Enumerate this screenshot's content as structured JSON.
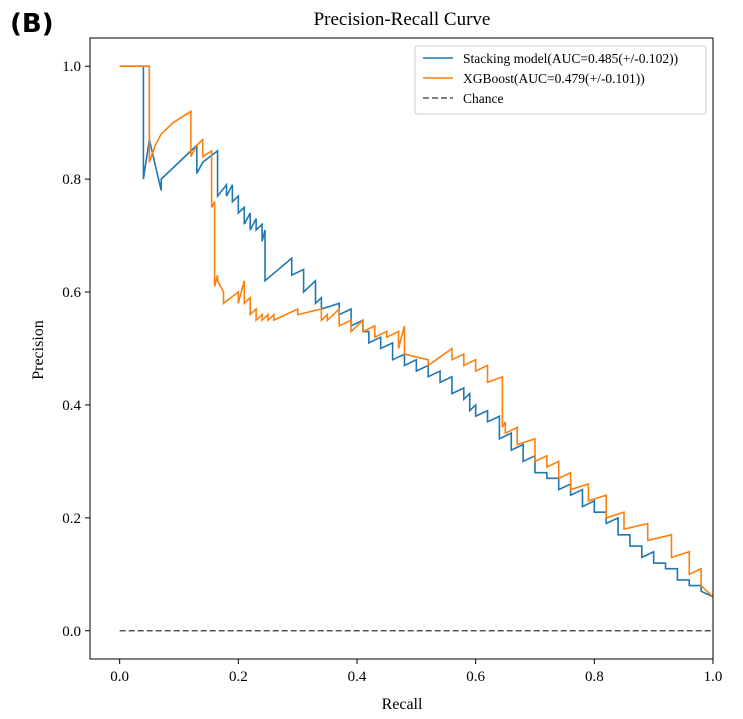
{
  "panel_label": "(B)",
  "chart_data": {
    "type": "line",
    "title": "Precision-Recall Curve",
    "xlabel": "Recall",
    "ylabel": "Precision",
    "xlim": [
      -0.05,
      1.0
    ],
    "ylim": [
      -0.05,
      1.05
    ],
    "xticks": [
      0.0,
      0.2,
      0.4,
      0.6,
      0.8,
      1.0
    ],
    "yticks": [
      0.0,
      0.2,
      0.4,
      0.6,
      0.8,
      1.0
    ],
    "xtick_labels": [
      "0.0",
      "0.2",
      "0.4",
      "0.6",
      "0.8",
      "1.0"
    ],
    "ytick_labels": [
      "0.0",
      "0.2",
      "0.4",
      "0.6",
      "0.8",
      "1.0"
    ],
    "grid": false,
    "legend_position": "top-right",
    "series": [
      {
        "name": "Stacking model(AUC=0.485(+/-0.102))",
        "color": "#1f77b4",
        "style": "solid",
        "x": [
          0.0,
          0.04,
          0.04,
          0.05,
          0.07,
          0.07,
          0.13,
          0.13,
          0.14,
          0.14,
          0.165,
          0.165,
          0.18,
          0.18,
          0.19,
          0.19,
          0.2,
          0.2,
          0.21,
          0.21,
          0.22,
          0.22,
          0.23,
          0.23,
          0.24,
          0.24,
          0.245,
          0.245,
          0.29,
          0.29,
          0.31,
          0.31,
          0.33,
          0.33,
          0.34,
          0.34,
          0.37,
          0.37,
          0.39,
          0.39,
          0.41,
          0.41,
          0.42,
          0.42,
          0.44,
          0.44,
          0.46,
          0.46,
          0.48,
          0.48,
          0.5,
          0.5,
          0.52,
          0.52,
          0.54,
          0.54,
          0.56,
          0.56,
          0.58,
          0.58,
          0.59,
          0.59,
          0.6,
          0.6,
          0.62,
          0.62,
          0.64,
          0.64,
          0.66,
          0.66,
          0.68,
          0.68,
          0.7,
          0.7,
          0.72,
          0.72,
          0.74,
          0.74,
          0.76,
          0.76,
          0.78,
          0.78,
          0.8,
          0.8,
          0.82,
          0.82,
          0.84,
          0.84,
          0.86,
          0.86,
          0.88,
          0.88,
          0.9,
          0.9,
          0.92,
          0.92,
          0.94,
          0.94,
          0.96,
          0.96,
          0.98,
          0.98,
          1.0
        ],
        "y": [
          1.0,
          1.0,
          0.8,
          0.87,
          0.78,
          0.8,
          0.86,
          0.81,
          0.83,
          0.83,
          0.85,
          0.77,
          0.79,
          0.77,
          0.79,
          0.76,
          0.77,
          0.74,
          0.75,
          0.72,
          0.74,
          0.71,
          0.73,
          0.71,
          0.72,
          0.69,
          0.71,
          0.62,
          0.66,
          0.63,
          0.64,
          0.6,
          0.62,
          0.58,
          0.59,
          0.57,
          0.58,
          0.56,
          0.57,
          0.54,
          0.55,
          0.53,
          0.53,
          0.51,
          0.52,
          0.5,
          0.51,
          0.48,
          0.49,
          0.47,
          0.48,
          0.46,
          0.47,
          0.45,
          0.46,
          0.44,
          0.45,
          0.42,
          0.43,
          0.41,
          0.42,
          0.39,
          0.4,
          0.38,
          0.39,
          0.37,
          0.38,
          0.34,
          0.35,
          0.32,
          0.33,
          0.3,
          0.31,
          0.28,
          0.28,
          0.27,
          0.27,
          0.25,
          0.26,
          0.24,
          0.25,
          0.22,
          0.23,
          0.21,
          0.21,
          0.19,
          0.2,
          0.17,
          0.17,
          0.15,
          0.15,
          0.13,
          0.14,
          0.12,
          0.12,
          0.11,
          0.11,
          0.09,
          0.09,
          0.08,
          0.08,
          0.07,
          0.06
        ]
      },
      {
        "name": "XGBoost(AUC=0.479(+/-0.101))",
        "color": "#ff7f0e",
        "style": "solid",
        "x": [
          0.0,
          0.05,
          0.05,
          0.06,
          0.07,
          0.09,
          0.12,
          0.12,
          0.13,
          0.14,
          0.14,
          0.155,
          0.155,
          0.16,
          0.16,
          0.165,
          0.165,
          0.175,
          0.175,
          0.2,
          0.2,
          0.21,
          0.21,
          0.22,
          0.22,
          0.23,
          0.23,
          0.24,
          0.24,
          0.25,
          0.25,
          0.26,
          0.26,
          0.3,
          0.3,
          0.34,
          0.34,
          0.35,
          0.35,
          0.37,
          0.37,
          0.39,
          0.39,
          0.41,
          0.41,
          0.43,
          0.43,
          0.45,
          0.45,
          0.47,
          0.47,
          0.48,
          0.48,
          0.52,
          0.52,
          0.56,
          0.56,
          0.58,
          0.58,
          0.6,
          0.6,
          0.62,
          0.62,
          0.645,
          0.645,
          0.65,
          0.65,
          0.67,
          0.67,
          0.7,
          0.7,
          0.72,
          0.72,
          0.74,
          0.74,
          0.76,
          0.76,
          0.79,
          0.79,
          0.82,
          0.82,
          0.85,
          0.85,
          0.89,
          0.89,
          0.93,
          0.93,
          0.96,
          0.96,
          0.98,
          0.98,
          1.0
        ],
        "y": [
          1.0,
          1.0,
          0.83,
          0.86,
          0.88,
          0.9,
          0.92,
          0.84,
          0.86,
          0.87,
          0.84,
          0.85,
          0.75,
          0.76,
          0.61,
          0.63,
          0.62,
          0.6,
          0.58,
          0.6,
          0.58,
          0.62,
          0.58,
          0.59,
          0.56,
          0.57,
          0.55,
          0.56,
          0.55,
          0.56,
          0.55,
          0.56,
          0.55,
          0.57,
          0.56,
          0.57,
          0.55,
          0.56,
          0.55,
          0.57,
          0.54,
          0.55,
          0.53,
          0.55,
          0.53,
          0.54,
          0.52,
          0.53,
          0.52,
          0.53,
          0.5,
          0.54,
          0.49,
          0.48,
          0.47,
          0.5,
          0.48,
          0.49,
          0.47,
          0.48,
          0.46,
          0.47,
          0.44,
          0.45,
          0.36,
          0.37,
          0.35,
          0.36,
          0.33,
          0.34,
          0.3,
          0.31,
          0.29,
          0.3,
          0.27,
          0.28,
          0.25,
          0.26,
          0.23,
          0.24,
          0.2,
          0.21,
          0.18,
          0.19,
          0.16,
          0.17,
          0.13,
          0.14,
          0.1,
          0.11,
          0.08,
          0.06
        ]
      },
      {
        "name": "Chance",
        "color": "#333333",
        "style": "dashed",
        "x": [
          0.0,
          1.0
        ],
        "y": [
          0.0,
          0.0
        ]
      }
    ]
  }
}
